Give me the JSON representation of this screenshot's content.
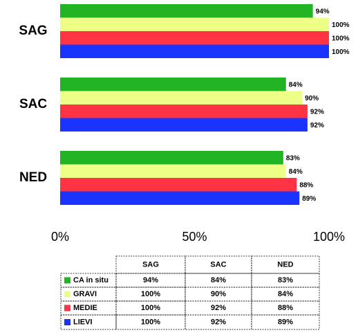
{
  "chart_data": {
    "type": "hbar",
    "categories": [
      "SAG",
      "SAC",
      "NED"
    ],
    "series": [
      {
        "name": "CA in situ",
        "color": "#22b422",
        "values": [
          94,
          84,
          83
        ],
        "value_labels": [
          "94%",
          "84%",
          "83%"
        ]
      },
      {
        "name": "GRAVI",
        "color": "#eeff88",
        "values": [
          100,
          90,
          84
        ],
        "value_labels": [
          "100%",
          "90%",
          "84%"
        ]
      },
      {
        "name": "MEDIE",
        "color": "#ff3344",
        "values": [
          100,
          92,
          88
        ],
        "value_labels": [
          "100%",
          "92%",
          "88%"
        ]
      },
      {
        "name": "LIEVI",
        "color": "#1a33ff",
        "values": [
          100,
          92,
          89
        ],
        "value_labels": [
          "100%",
          "92%",
          "89%"
        ]
      }
    ],
    "xlim": [
      0,
      100
    ],
    "xticks": [
      {
        "value": 0,
        "label": "0%"
      },
      {
        "value": 50,
        "label": "50%"
      },
      {
        "value": 100,
        "label": "100%"
      }
    ],
    "grid": false,
    "data_table": true
  }
}
